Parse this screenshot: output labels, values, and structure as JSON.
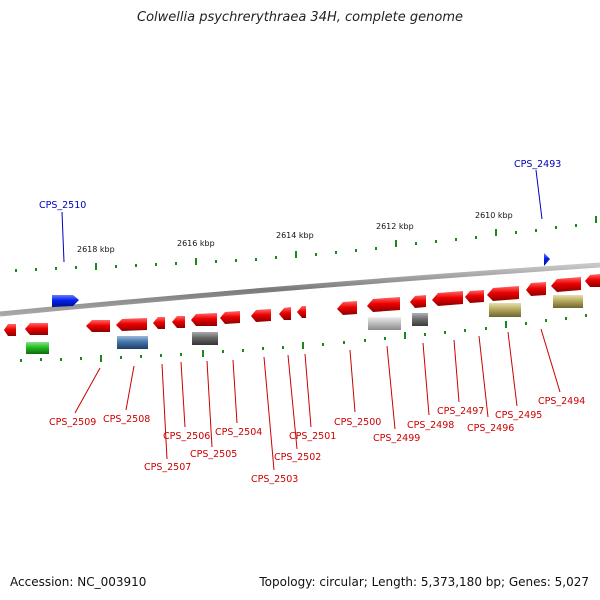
{
  "title": "Colwellia psychrerythraea 34H, complete genome",
  "footer": {
    "accession": "Accession: NC_003910",
    "info": "Topology: circular; Length: 5,373,180 bp; Genes: 5,027"
  },
  "colors": {
    "red_gene": "#ee0000",
    "blue_gene": "#0022ee",
    "green_gene": "#22bb22",
    "steelblue_gene": "#4477aa",
    "gray_gene": "#666666",
    "lightgray_gene": "#bbbbbb",
    "darkgray_gene": "#777777",
    "olive_gene": "#b5a860",
    "backbone": "#888888",
    "tick": "#1a8a1a",
    "label_red": "#cc0000",
    "label_blue": "#0000bb"
  },
  "ruler": {
    "unit": "kbp",
    "major_ticks": [
      {
        "label": "2618 kbp",
        "kbp": 2618
      },
      {
        "label": "2616 kbp",
        "kbp": 2616
      },
      {
        "label": "2614 kbp",
        "kbp": 2614
      },
      {
        "label": "2612 kbp",
        "kbp": 2612
      },
      {
        "label": "2610 kbp",
        "kbp": 2610
      }
    ]
  },
  "genes_forward": [
    {
      "name": "CPS_2510",
      "color": "blue"
    },
    {
      "name": "CPS_2493",
      "color": "blue"
    }
  ],
  "genes_reverse": [
    {
      "name": "CPS_2509"
    },
    {
      "name": "CPS_2508"
    },
    {
      "name": "CPS_2507"
    },
    {
      "name": "CPS_2506"
    },
    {
      "name": "CPS_2505"
    },
    {
      "name": "CPS_2504"
    },
    {
      "name": "CPS_2503"
    },
    {
      "name": "CPS_2502"
    },
    {
      "name": "CPS_2501"
    },
    {
      "name": "CPS_2500"
    },
    {
      "name": "CPS_2499"
    },
    {
      "name": "CPS_2498"
    },
    {
      "name": "CPS_2497"
    },
    {
      "name": "CPS_2496"
    },
    {
      "name": "CPS_2495"
    },
    {
      "name": "CPS_2494"
    }
  ]
}
